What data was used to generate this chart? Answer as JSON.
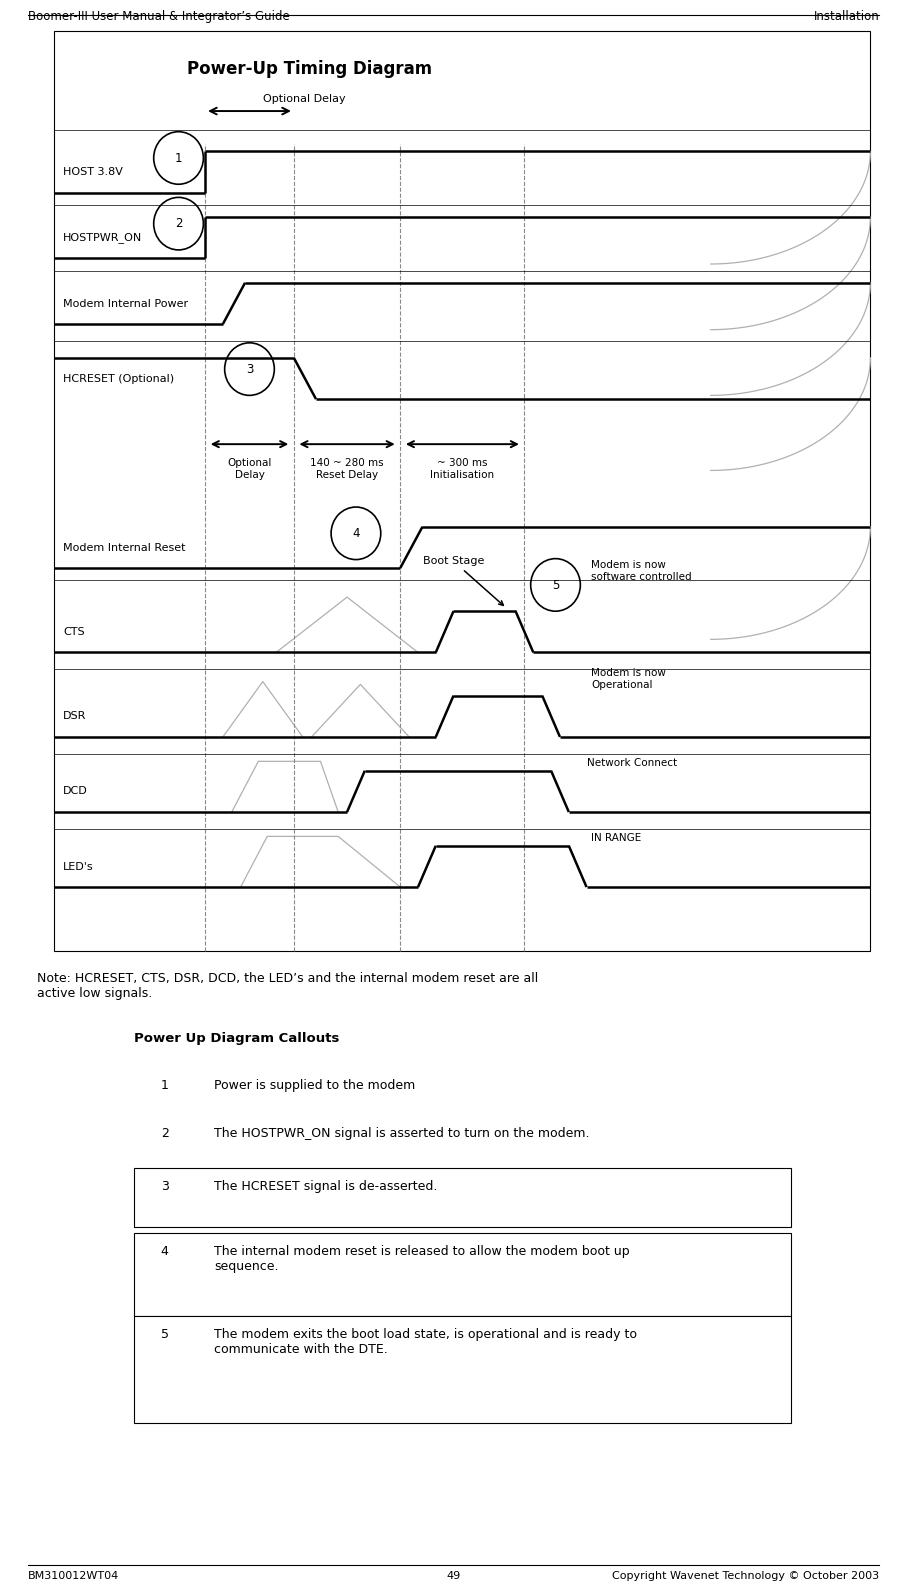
{
  "title": "Power-Up Timing Diagram",
  "header_left": "Boomer-III User Manual & Integrator’s Guide",
  "header_right": "Installation",
  "footer_left": "BM310012WT04",
  "footer_center": "49",
  "footer_right": "Copyright Wavenet Technology © October 2003",
  "bg_color": "#ffffff",
  "note": "Note: HCRESET, CTS, DSR, DCD, the LED’s and the internal modem reset are all\nactive low signals.",
  "callout_title": "Power Up Diagram Callouts",
  "callouts": [
    [
      "1",
      "Power is supplied to the modem"
    ],
    [
      "2",
      "The HOSTPWR_ON signal is asserted to turn on the modem."
    ],
    [
      "3",
      "The HCRESET signal is de-asserted."
    ],
    [
      "4",
      "The internal modem reset is released to allow the modem boot up\nsequence."
    ],
    [
      "5",
      "The modem exits the boot load state, is operational and is ready to\ncommunicate with the DTE."
    ]
  ]
}
